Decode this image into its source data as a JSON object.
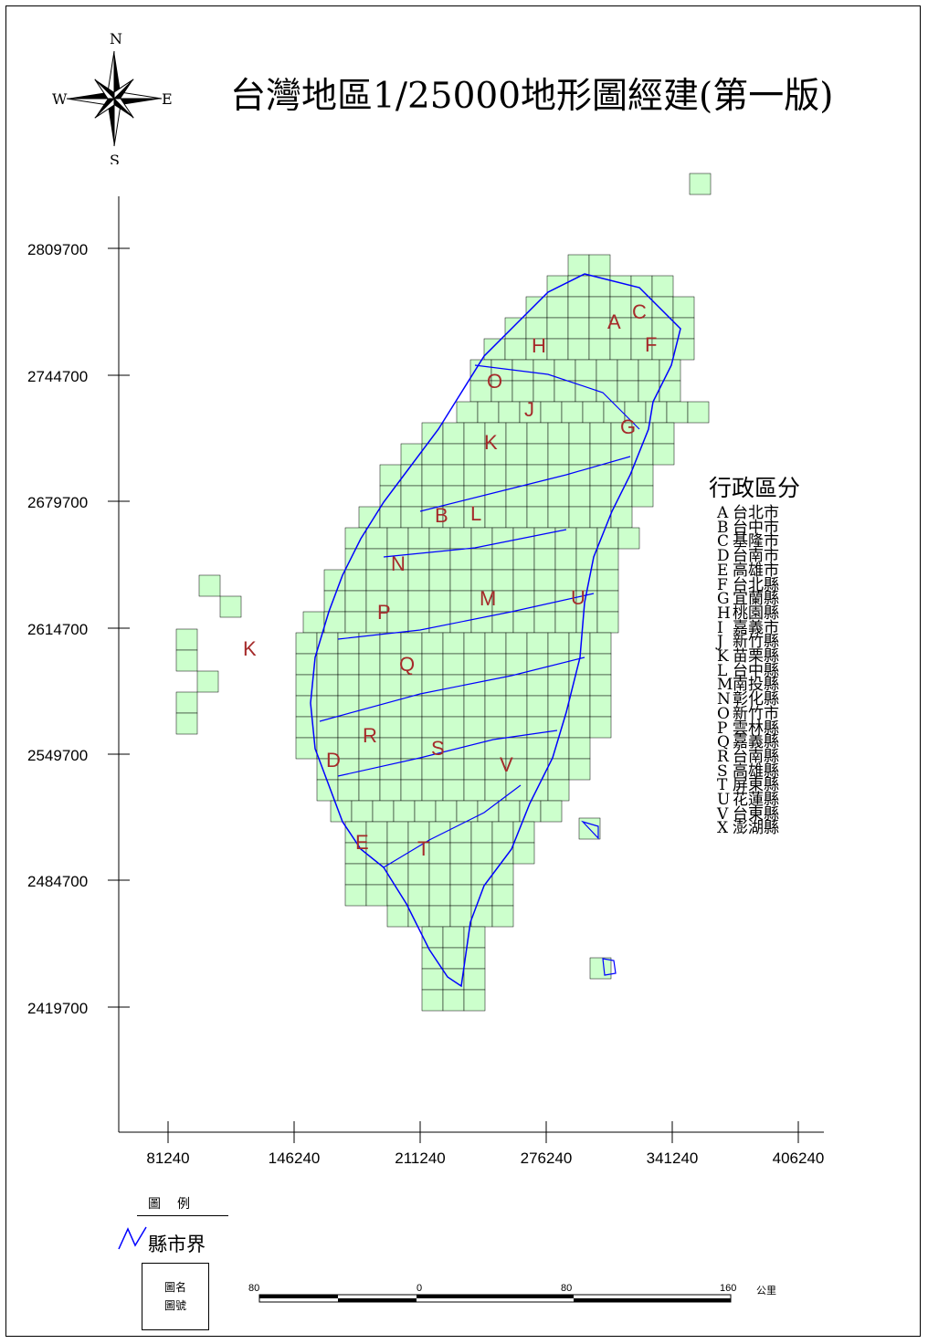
{
  "title": "台灣地區1/25000地形圖經建(第一版)",
  "compass": {
    "n": "N",
    "s": "S",
    "e": "E",
    "w": "W"
  },
  "axes": {
    "y_ticks": [
      "2809700",
      "2744700",
      "2679700",
      "2614700",
      "2549700",
      "2484700",
      "2419700"
    ],
    "x_ticks": [
      "81240",
      "146240",
      "211240",
      "276240",
      "341240",
      "406240"
    ]
  },
  "admin": {
    "title": "行政區分",
    "items": [
      {
        "code": "A",
        "name": "台北市"
      },
      {
        "code": "B",
        "name": "台中市"
      },
      {
        "code": "C",
        "name": "基隆市"
      },
      {
        "code": "D",
        "name": "台南市"
      },
      {
        "code": "E",
        "name": "高雄市"
      },
      {
        "code": "F",
        "name": "台北縣"
      },
      {
        "code": "G",
        "name": "宜蘭縣"
      },
      {
        "code": "H",
        "name": "桃園縣"
      },
      {
        "code": "I",
        "name": "嘉義市"
      },
      {
        "code": "J",
        "name": "新竹縣"
      },
      {
        "code": "K",
        "name": "苗栗縣"
      },
      {
        "code": "L",
        "name": "台中縣"
      },
      {
        "code": "M",
        "name": "南投縣"
      },
      {
        "code": "N",
        "name": "彰化縣"
      },
      {
        "code": "O",
        "name": "新竹市"
      },
      {
        "code": "P",
        "name": "雲林縣"
      },
      {
        "code": "Q",
        "name": "嘉義縣"
      },
      {
        "code": "R",
        "name": "台南縣"
      },
      {
        "code": "S",
        "name": "高雄縣"
      },
      {
        "code": "T",
        "name": "屏東縣"
      },
      {
        "code": "U",
        "name": "花蓮縣"
      },
      {
        "code": "V",
        "name": "台東縣"
      },
      {
        "code": "X",
        "name": "澎湖縣"
      }
    ]
  },
  "map_labels": [
    "A",
    "B",
    "C",
    "D",
    "E",
    "F",
    "G",
    "H",
    "J",
    "K",
    "L",
    "M",
    "N",
    "O",
    "P",
    "Q",
    "R",
    "S",
    "T",
    "U",
    "V"
  ],
  "legend": {
    "title": "圖例",
    "boundary_label": "縣市界",
    "sheet_name": "圖名",
    "sheet_number": "圖號"
  },
  "scale_bar": {
    "labels": [
      "80",
      "0",
      "80",
      "160"
    ],
    "unit": "公里"
  },
  "colors": {
    "grid_fill": "#ccffcc",
    "boundary": "#0000ff",
    "region_label": "#a52a2a"
  }
}
